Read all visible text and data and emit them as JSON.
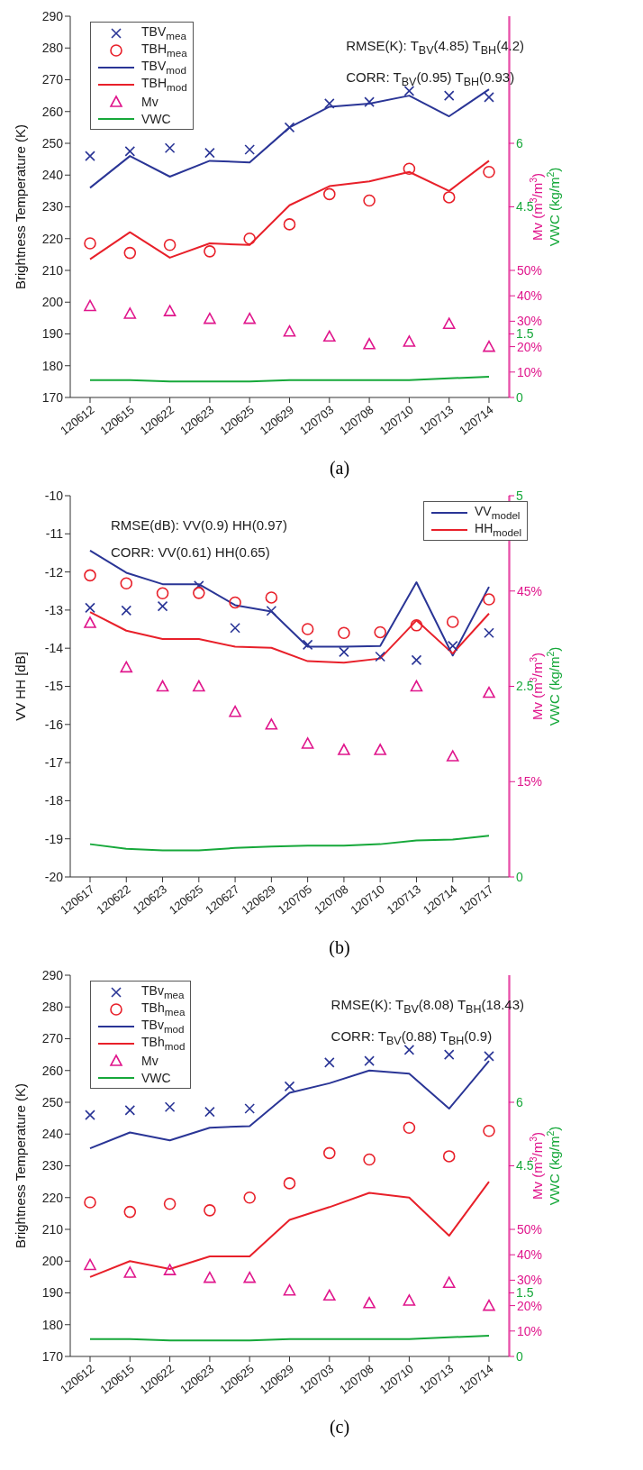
{
  "chart_data": [
    {
      "type": "line",
      "title": "(a)",
      "categories": [
        "120612",
        "120615",
        "120622",
        "120623",
        "120625",
        "120629",
        "120703",
        "120708",
        "120710",
        "120713",
        "120714"
      ],
      "ylabel": "Brightness Temperature (K)",
      "y2label": "VWC (kg/m$^{2}$)",
      "y3label": "Mv (m$^{3}$/m$^{3}$)",
      "ylim": [
        170,
        290
      ],
      "yticks": [
        170,
        180,
        190,
        200,
        210,
        220,
        230,
        240,
        250,
        260,
        270,
        280,
        290
      ],
      "y2lim": [
        0,
        9
      ],
      "y2ticks": [
        0,
        1.5,
        4.5,
        6
      ],
      "y3lim": [
        0,
        150
      ],
      "y3ticks": [
        {
          "value": 10,
          "label": "10%"
        },
        {
          "value": 20,
          "label": "20%"
        },
        {
          "value": 30,
          "label": "30%"
        },
        {
          "value": 40,
          "label": "40%"
        },
        {
          "value": 50,
          "label": "50%"
        }
      ],
      "legend": "top left",
      "grid": false,
      "annotations": [
        "RMSE(K): T$_{BV}$(4.85) T$_{BH}$(4.2)",
        "CORR: T$_{BV}$(0.95) T$_{BH}$(0.93)"
      ],
      "series": [
        {
          "name": "TBV$_{mea}$",
          "type": "scatter",
          "marker": "cross",
          "color": "#2a3596",
          "values": [
            246,
            247.5,
            248.5,
            247,
            248,
            255,
            262.5,
            263,
            266.5,
            265,
            264.5
          ]
        },
        {
          "name": "TBH$_{mea}$",
          "type": "scatter",
          "marker": "circle",
          "color": "#e8202a",
          "values": [
            218.5,
            215.5,
            218,
            216,
            220,
            224.5,
            234,
            232,
            242,
            233,
            241
          ]
        },
        {
          "name": "TBV$_{mod}$",
          "color": "#2a3596",
          "values": [
            236,
            246,
            239.5,
            244.5,
            244,
            255,
            261.5,
            262.5,
            265,
            258.5,
            267
          ]
        },
        {
          "name": "TBH$_{mod}$",
          "color": "#e8202a",
          "values": [
            213.5,
            222,
            214,
            218.5,
            218,
            230.5,
            236.5,
            238,
            241,
            235,
            244.5
          ]
        },
        {
          "name": "Mv",
          "type": "scatter",
          "marker": "triangle",
          "axis": "y3",
          "color": "#e0168c",
          "values": [
            36,
            33,
            34,
            31,
            31,
            26,
            24,
            21,
            22,
            29,
            20
          ]
        },
        {
          "name": "VWC",
          "type": "line",
          "axis": "y2",
          "color": "#16a83a",
          "values": [
            0.41,
            0.41,
            0.38,
            0.38,
            0.38,
            0.41,
            0.41,
            0.41,
            0.41,
            0.45,
            0.49
          ]
        }
      ]
    },
    {
      "type": "line",
      "title": "(b)",
      "categories": [
        "120617",
        "120622",
        "120623",
        "120625",
        "120627",
        "120629",
        "120705",
        "120708",
        "120710",
        "120713",
        "120714",
        "120717"
      ],
      "ylabel": "VV HH [dB]",
      "y2label": "VWC (kg/m$^{2}$)",
      "y3label": "Mv (m$^{3}$/m$^{3}$)",
      "ylim": [
        -20,
        -10
      ],
      "yticks": [
        -20,
        -19,
        -18,
        -17,
        -16,
        -15,
        -14,
        -13,
        -12,
        -11,
        -10
      ],
      "y2lim": [
        0,
        5
      ],
      "y2ticks": [
        0,
        2.5,
        5
      ],
      "y3lim": [
        0,
        60
      ],
      "y3ticks": [
        {
          "value": 15,
          "label": "15%"
        },
        {
          "value": 45,
          "label": "45%"
        }
      ],
      "legend": "top right",
      "grid": false,
      "annotations": [
        "RMSE(dB): VV(0.9) HH(0.97)",
        "CORR: VV(0.61) HH(0.65)"
      ],
      "series": [
        {
          "name": "VV$_{model}$",
          "color": "#2a3596",
          "values": [
            -11.44,
            -12.02,
            -12.32,
            -12.32,
            -12.87,
            -13.04,
            -13.96,
            -13.96,
            -13.94,
            -12.27,
            -14.19,
            -12.39
          ]
        },
        {
          "name": "HH$_{model}$",
          "color": "#e8202a",
          "values": [
            -13.05,
            -13.54,
            -13.76,
            -13.76,
            -13.96,
            -13.99,
            -14.34,
            -14.38,
            -14.27,
            -13.27,
            -14.14,
            -13.09
          ]
        },
        {
          "type": "scatter",
          "marker": "cross",
          "color": "#2a3596",
          "values": [
            -12.94,
            -13.01,
            -12.9,
            -12.36,
            -13.47,
            -13.02,
            -13.91,
            -14.1,
            -14.22,
            -14.31,
            -13.94,
            -13.6
          ]
        },
        {
          "type": "scatter",
          "marker": "circle",
          "color": "#e8202a",
          "values": [
            -12.09,
            -12.3,
            -12.56,
            -12.55,
            -12.8,
            -12.67,
            -13.5,
            -13.6,
            -13.58,
            -13.4,
            -13.31,
            -12.72
          ]
        },
        {
          "type": "scatter",
          "marker": "triangle",
          "axis": "y3",
          "color": "#e0168c",
          "values": [
            40,
            33,
            30,
            30,
            26,
            24,
            21,
            20,
            20,
            30,
            19,
            29
          ]
        },
        {
          "type": "line",
          "axis": "y2",
          "color": "#16a83a",
          "values": [
            0.43,
            0.37,
            0.35,
            0.35,
            0.38,
            0.4,
            0.41,
            0.41,
            0.43,
            0.48,
            0.49,
            0.54
          ]
        }
      ]
    },
    {
      "type": "line",
      "title": "(c)",
      "categories": [
        "120612",
        "120615",
        "120622",
        "120623",
        "120625",
        "120629",
        "120703",
        "120708",
        "120710",
        "120713",
        "120714"
      ],
      "ylabel": "Brightness Temperature (K)",
      "y2label": "VWC (kg/m$^{2}$)",
      "y3label": "Mv (m$^{3}$/m$^{3}$)",
      "ylim": [
        170,
        290
      ],
      "yticks": [
        170,
        180,
        190,
        200,
        210,
        220,
        230,
        240,
        250,
        260,
        270,
        280,
        290
      ],
      "y2lim": [
        0,
        9
      ],
      "y2ticks": [
        0,
        1.5,
        4.5,
        6
      ],
      "y3lim": [
        0,
        150
      ],
      "y3ticks": [
        {
          "value": 10,
          "label": "10%"
        },
        {
          "value": 20,
          "label": "20%"
        },
        {
          "value": 30,
          "label": "30%"
        },
        {
          "value": 40,
          "label": "40%"
        },
        {
          "value": 50,
          "label": "50%"
        }
      ],
      "legend": "top left",
      "grid": false,
      "annotations": [
        "RMSE(K): T$_{BV}$(8.08) T$_{BH}$(18.43)",
        "CORR: T$_{BV}$(0.88) T$_{BH}$(0.9)"
      ],
      "series": [
        {
          "name": "TBv$_{mea}$",
          "type": "scatter",
          "marker": "cross",
          "color": "#2a3596",
          "values": [
            246,
            247.5,
            248.5,
            247,
            248,
            255,
            262.5,
            263,
            266.5,
            265,
            264.5
          ]
        },
        {
          "name": "TBh$_{mea}$",
          "type": "scatter",
          "marker": "circle",
          "color": "#e8202a",
          "values": [
            218.5,
            215.5,
            218,
            216,
            220,
            224.5,
            234,
            232,
            242,
            233,
            241
          ]
        },
        {
          "name": "TBv$_{mod}$",
          "color": "#2a3596",
          "values": [
            235.5,
            240.5,
            238,
            242,
            242.5,
            253,
            256,
            260,
            259,
            248,
            263
          ]
        },
        {
          "name": "TBh$_{mod}$",
          "color": "#e8202a",
          "values": [
            195,
            200,
            197.5,
            201.5,
            201.5,
            213,
            217,
            221.5,
            220,
            208,
            225
          ]
        },
        {
          "name": "Mv",
          "type": "scatter",
          "marker": "triangle",
          "axis": "y3",
          "color": "#e0168c",
          "values": [
            36,
            33,
            34,
            31,
            31,
            26,
            24,
            21,
            22,
            29,
            20
          ]
        },
        {
          "name": "VWC",
          "type": "line",
          "axis": "y2",
          "color": "#16a83a",
          "values": [
            0.41,
            0.41,
            0.38,
            0.38,
            0.38,
            0.41,
            0.41,
            0.41,
            0.41,
            0.45,
            0.49
          ]
        }
      ]
    }
  ]
}
